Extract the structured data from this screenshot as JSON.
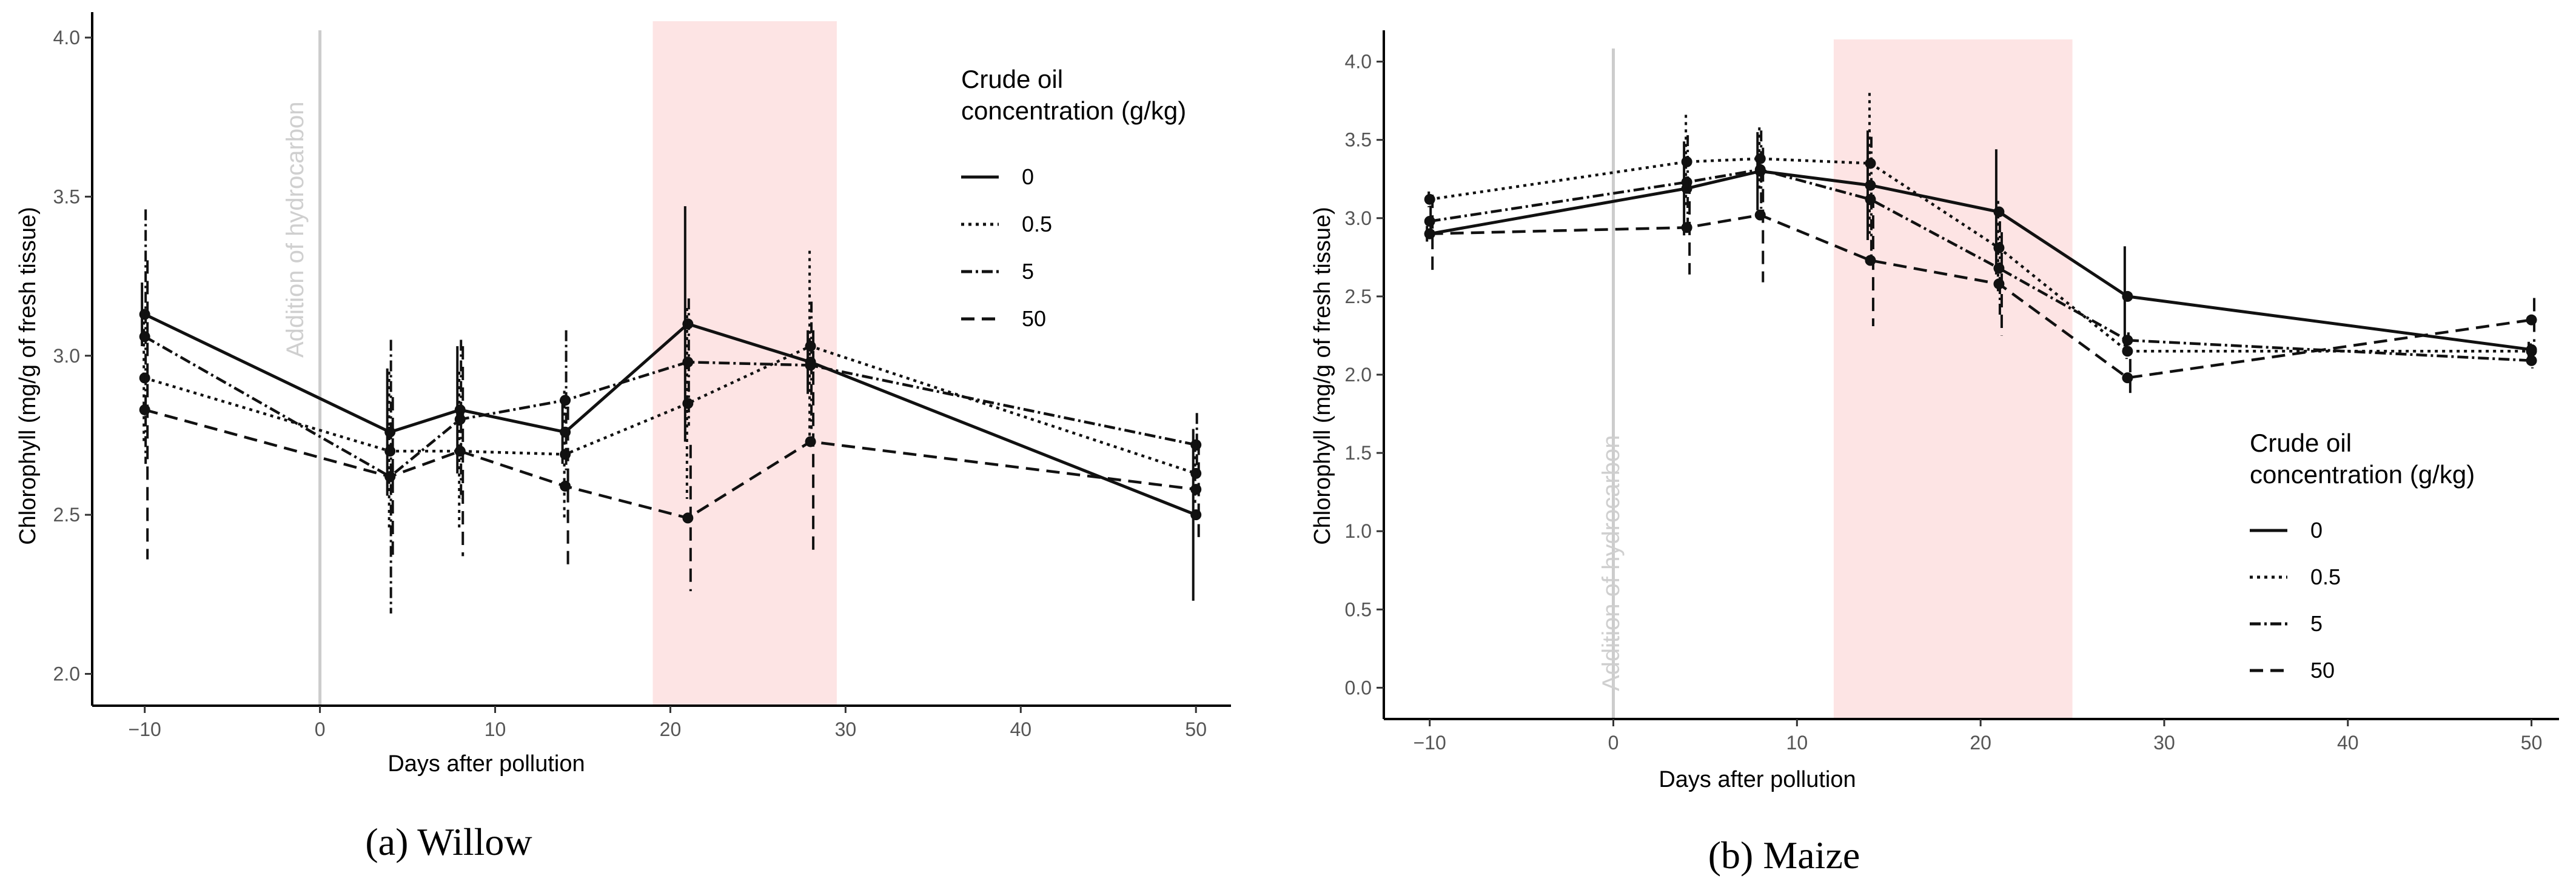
{
  "colors": {
    "highlight": "#fde4e4",
    "vline": "#cccccc",
    "series": "#111111",
    "tick": "#555555"
  },
  "chart_data": [
    {
      "type": "line",
      "caption": "(a)  Willow",
      "xlabel": "Days after pollution",
      "ylabel": "Chlorophyll (mg/g of fresh tissue)",
      "xlim": [
        -13,
        52
      ],
      "ylim": [
        1.9,
        4.08
      ],
      "xticks": [
        -10,
        0,
        10,
        20,
        30,
        40,
        50
      ],
      "yticks": [
        2.0,
        2.5,
        3.0,
        3.5,
        4.0
      ],
      "ytick_labels": [
        "2.0",
        "2.5",
        "3.0",
        "3.5",
        "4.0"
      ],
      "highlight_range": [
        19,
        29.5
      ],
      "vline": {
        "x": 0,
        "label": "Addition of hydrocarbon"
      },
      "legend": {
        "title_lines": [
          "Crude oil",
          "concentration (g/kg)"
        ],
        "position": "top-right"
      },
      "series": [
        {
          "name": "0",
          "dash": "solid",
          "x": [
            -10,
            4,
            8,
            14,
            21,
            28,
            50
          ],
          "y": [
            3.13,
            2.76,
            2.83,
            2.76,
            3.1,
            2.98,
            2.5
          ],
          "err": [
            0.1,
            0.2,
            0.2,
            0.1,
            0.37,
            0.1,
            0.27
          ]
        },
        {
          "name": "0.5",
          "dash": "dotted",
          "x": [
            -10,
            4,
            8,
            14,
            21,
            28,
            50
          ],
          "y": [
            2.93,
            2.7,
            2.7,
            2.69,
            2.85,
            3.03,
            2.63
          ],
          "err": [
            0.2,
            0.25,
            0.25,
            0.2,
            0.3,
            0.3,
            0.1
          ]
        },
        {
          "name": "5",
          "dash": "dashdot",
          "x": [
            -10,
            4,
            8,
            14,
            21,
            28,
            50
          ],
          "y": [
            3.06,
            2.62,
            2.8,
            2.86,
            2.98,
            2.97,
            2.72
          ],
          "err": [
            0.4,
            0.43,
            0.25,
            0.22,
            0.2,
            0.2,
            0.1
          ]
        },
        {
          "name": "50",
          "dash": "dashed",
          "x": [
            -10,
            4,
            8,
            14,
            21,
            28,
            50
          ],
          "y": [
            2.83,
            2.62,
            2.7,
            2.59,
            2.49,
            2.73,
            2.58
          ],
          "err": [
            0.47,
            0.25,
            0.33,
            0.25,
            0.23,
            0.35,
            0.15
          ]
        }
      ]
    },
    {
      "type": "line",
      "caption": "(b)  Maize",
      "xlabel": "Days after pollution",
      "ylabel": "Chlorophyll (mg/g of fresh tissue)",
      "xlim": [
        -12.5,
        51.5
      ],
      "ylim": [
        -0.2,
        4.2
      ],
      "xticks": [
        -10,
        0,
        10,
        20,
        30,
        40,
        50
      ],
      "yticks": [
        0.0,
        0.5,
        1.0,
        1.5,
        2.0,
        2.5,
        3.0,
        3.5,
        4.0
      ],
      "ytick_labels": [
        "0.0",
        "0.5",
        "1.0",
        "1.5",
        "2.0",
        "2.5",
        "3.0",
        "3.5",
        "4.0"
      ],
      "highlight_range": [
        12,
        25
      ],
      "vline": {
        "x": 0,
        "label": "Addition of hydrocarbon"
      },
      "legend": {
        "title_lines": [
          "Crude oil",
          "concentration (g/kg)"
        ],
        "position": "bottom-right"
      },
      "series": [
        {
          "name": "0",
          "dash": "solid",
          "x": [
            -10,
            4,
            8,
            14,
            21,
            28,
            50
          ],
          "y": [
            2.9,
            3.19,
            3.3,
            3.21,
            3.04,
            2.5,
            2.16
          ],
          "err": [
            0.05,
            0.3,
            0.25,
            0.35,
            0.4,
            0.32,
            0.05
          ]
        },
        {
          "name": "0.5",
          "dash": "dotted",
          "x": [
            -10,
            4,
            8,
            14,
            21,
            28,
            50
          ],
          "y": [
            3.12,
            3.36,
            3.38,
            3.35,
            2.81,
            2.15,
            2.15
          ],
          "err": [
            0.05,
            0.3,
            0.2,
            0.45,
            0.3,
            0.05,
            0.05
          ]
        },
        {
          "name": "5",
          "dash": "dashdot",
          "x": [
            -10,
            4,
            8,
            14,
            21,
            28,
            50
          ],
          "y": [
            2.98,
            3.23,
            3.31,
            3.12,
            2.68,
            2.22,
            2.09
          ],
          "err": [
            0.1,
            0.3,
            0.25,
            0.4,
            0.3,
            0.05,
            0.05
          ]
        },
        {
          "name": "50",
          "dash": "dashed",
          "x": [
            -10,
            4,
            8,
            14,
            21,
            28,
            50
          ],
          "y": [
            2.9,
            2.94,
            3.02,
            2.73,
            2.58,
            1.98,
            2.35
          ],
          "err": [
            0.25,
            0.3,
            0.43,
            0.42,
            0.33,
            0.12,
            0.14
          ]
        }
      ]
    }
  ]
}
